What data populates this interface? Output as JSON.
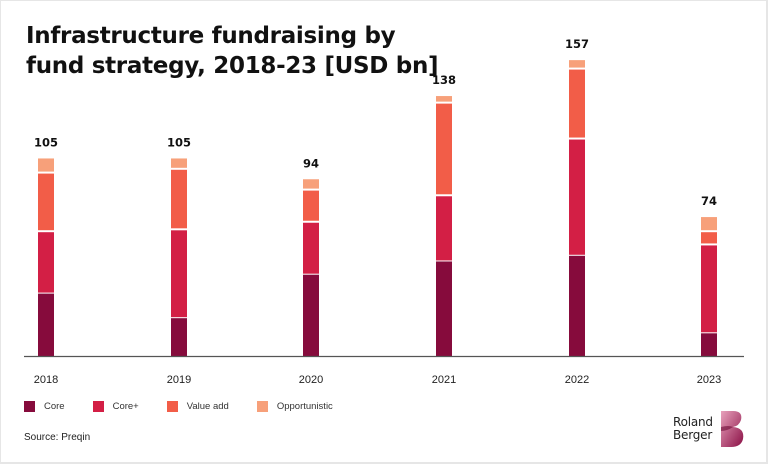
{
  "title": "Infrastructure fundraising by fund strategy, 2018-23 [USD bn]",
  "title_lines": [
    "Infrastructure fundraising by",
    "fund strategy, 2018-23 [USD bn]"
  ],
  "source": "Source: Preqin",
  "logo": {
    "line1": "Roland",
    "line2": "Berger",
    "mark": "B"
  },
  "chart_data": {
    "type": "bar",
    "stacked": true,
    "title": "Infrastructure fundraising by fund strategy, 2018-23 [USD bn]",
    "xlabel": "",
    "ylabel": "USD bn",
    "ylim": [
      0,
      165
    ],
    "grid": false,
    "legend_position": "bottom-left",
    "categories": [
      "2018",
      "2019",
      "2020",
      "2021",
      "2022",
      "2023"
    ],
    "totals": [
      105,
      105,
      94,
      138,
      157,
      74
    ],
    "series": [
      {
        "name": "Core",
        "color": "#860b3c",
        "values": [
          33,
          20,
          43,
          50,
          53,
          12
        ]
      },
      {
        "name": "Core+",
        "color": "#d31f45",
        "values": [
          33,
          47,
          28,
          35,
          62,
          47
        ]
      },
      {
        "name": "Value add",
        "color": "#f25d48",
        "values": [
          31,
          32,
          17,
          49,
          37,
          7
        ]
      },
      {
        "name": "Opportunistic",
        "color": "#f7a07a",
        "values": [
          8,
          6,
          6,
          4,
          5,
          8
        ]
      }
    ]
  }
}
